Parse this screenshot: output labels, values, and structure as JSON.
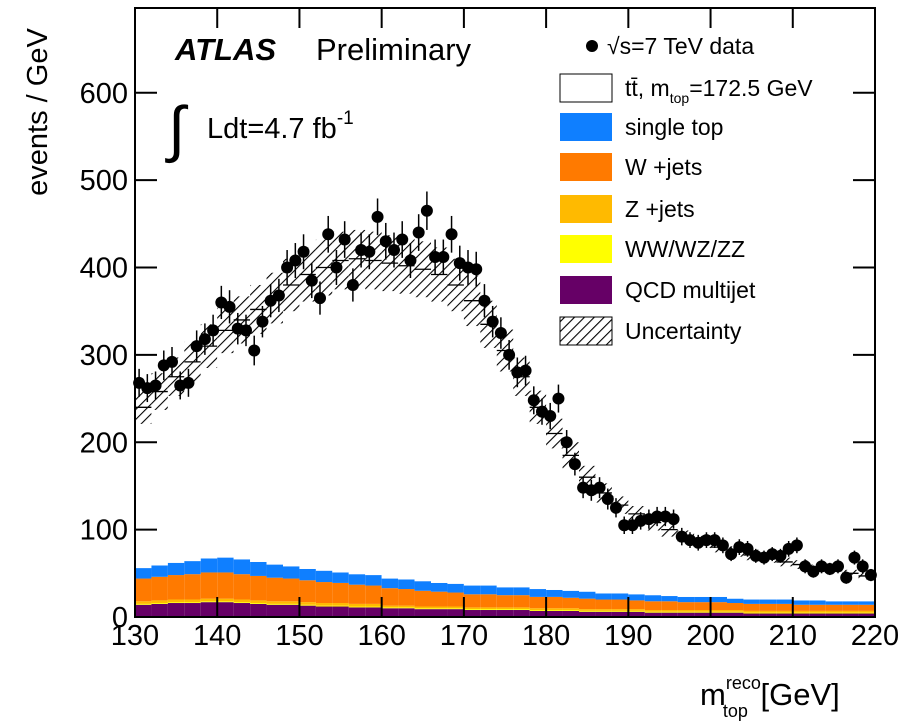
{
  "chart_data": {
    "type": "histogram",
    "experiment": "ATLAS",
    "status": "Preliminary",
    "luminosity": [
      "∫",
      "Ldt=4.7 fb",
      "-1"
    ],
    "y_label": "events / GeV",
    "x_label": [
      "m",
      "reco",
      "top",
      " [GeV]"
    ],
    "xlim": [
      130,
      220
    ],
    "ylim": [
      0,
      697
    ],
    "xticks": [
      130,
      140,
      150,
      160,
      170,
      180,
      190,
      200,
      210,
      220
    ],
    "yticks": [
      0,
      100,
      200,
      300,
      400,
      500,
      600
    ],
    "bins": [
      130,
      132,
      134,
      136,
      138,
      140,
      142,
      144,
      146,
      148,
      150,
      152,
      154,
      156,
      158,
      160,
      162,
      164,
      166,
      168,
      170,
      172,
      174,
      176,
      178,
      180,
      182,
      184,
      186,
      188,
      190,
      192,
      194,
      196,
      198,
      200,
      202,
      204,
      206,
      208,
      210,
      212,
      214,
      216,
      218,
      220
    ],
    "series": [
      {
        "name": [
          "tt̄, m",
          "top",
          "=172.5 GeV"
        ],
        "color": "#ffffff",
        "values": [
          184,
          199,
          213,
          228,
          243,
          260,
          274,
          289,
          305,
          322,
          337,
          347,
          357,
          361,
          360,
          361,
          359,
          357,
          353,
          342,
          326,
          299,
          271,
          241,
          208,
          179,
          155,
          131,
          115,
          101,
          92,
          83,
          76,
          69,
          63,
          57,
          54,
          51,
          47,
          43,
          41,
          37,
          35,
          32,
          29
        ]
      },
      {
        "name": "single top",
        "color": "#0f7fff",
        "values": [
          12,
          13,
          14,
          15,
          16,
          17,
          17,
          16,
          15,
          14,
          13,
          13,
          12,
          12,
          12,
          11,
          11,
          11,
          10,
          10,
          10,
          10,
          9,
          9,
          9,
          8,
          8,
          8,
          7,
          7,
          7,
          7,
          6,
          6,
          6,
          6,
          5,
          5,
          5,
          5,
          5,
          5,
          4,
          4,
          4
        ]
      },
      {
        "name": "W +jets",
        "color": "#ff7a00",
        "values": [
          26,
          27,
          28,
          29,
          30,
          30,
          29,
          28,
          27,
          26,
          25,
          24,
          23,
          22,
          21,
          20,
          19,
          18,
          17,
          16,
          15,
          15,
          14,
          14,
          13,
          13,
          12,
          12,
          11,
          11,
          10,
          10,
          10,
          9,
          9,
          9,
          8,
          8,
          8,
          8,
          7,
          7,
          7,
          7,
          7
        ]
      },
      {
        "name": "Z +jets",
        "color": "#ffba00",
        "values": [
          3,
          3,
          3,
          3,
          3,
          3,
          3,
          3,
          3,
          3,
          3,
          3,
          3,
          3,
          3,
          2,
          2,
          2,
          2,
          2,
          2,
          2,
          2,
          2,
          2,
          2,
          2,
          2,
          2,
          2,
          2,
          2,
          2,
          2,
          2,
          2,
          2,
          2,
          2,
          2,
          2,
          2,
          2,
          2,
          2
        ]
      },
      {
        "name": "WW/WZ/ZZ",
        "color": "#ffff00",
        "values": [
          1,
          1,
          1,
          1,
          1,
          1,
          1,
          1,
          1,
          1,
          1,
          1,
          1,
          1,
          1,
          1,
          1,
          1,
          1,
          1,
          1,
          1,
          1,
          1,
          1,
          1,
          1,
          1,
          1,
          1,
          1,
          1,
          1,
          1,
          1,
          1,
          1,
          1,
          1,
          1,
          1,
          1,
          1,
          1,
          1
        ]
      },
      {
        "name": "QCD multijet",
        "color": "#660066",
        "values": [
          14,
          15,
          16,
          16,
          17,
          17,
          16,
          15,
          14,
          14,
          13,
          12,
          12,
          11,
          11,
          10,
          10,
          9,
          9,
          9,
          8,
          8,
          8,
          8,
          7,
          7,
          7,
          6,
          6,
          6,
          6,
          5,
          5,
          5,
          5,
          5,
          5,
          4,
          4,
          4,
          4,
          4,
          4,
          4,
          4
        ]
      }
    ],
    "uncertainty_name": "Uncertainty",
    "uncertainty": [
      19,
      21,
      22,
      23,
      25,
      26,
      27,
      28,
      29,
      30,
      31,
      32,
      33,
      33,
      33,
      32,
      32,
      32,
      31,
      30,
      29,
      27,
      24,
      22,
      19,
      17,
      15,
      13,
      11,
      10,
      9,
      9,
      8,
      7,
      7,
      6,
      6,
      6,
      5,
      5,
      5,
      4,
      4,
      4,
      4
    ],
    "data_series": {
      "name": "√s=7 TeV data",
      "color": "#000000",
      "x": [
        130.5,
        131.5,
        132.5,
        133.5,
        134.5,
        135.5,
        136.5,
        137.5,
        138.5,
        139.5,
        140.5,
        141.5,
        142.5,
        143.5,
        144.5,
        145.5,
        146.5,
        147.5,
        148.5,
        149.5,
        150.5,
        151.5,
        152.5,
        153.5,
        154.5,
        155.5,
        156.5,
        157.5,
        158.5,
        159.5,
        160.5,
        161.5,
        162.5,
        163.5,
        164.5,
        165.5,
        166.5,
        167.5,
        168.5,
        169.5,
        170.5,
        171.5,
        172.5,
        173.5,
        174.5,
        175.5,
        176.5,
        177.5,
        178.5,
        179.5,
        180.5,
        181.5,
        182.5,
        183.5,
        184.5,
        185.5,
        186.5,
        187.5,
        188.5,
        189.5,
        190.5,
        191.5,
        192.5,
        193.5,
        194.5,
        195.5,
        196.5,
        197.5,
        198.5,
        199.5,
        200.5,
        201.5,
        202.5,
        203.5,
        204.5,
        205.5,
        206.5,
        207.5,
        208.5,
        209.5,
        210.5,
        211.5,
        212.5,
        213.5,
        214.5,
        215.5,
        216.5,
        217.5,
        218.5,
        219.5
      ],
      "values": [
        268,
        262,
        265,
        288,
        292,
        265,
        268,
        310,
        318,
        328,
        360,
        355,
        330,
        328,
        305,
        338,
        362,
        368,
        400,
        408,
        418,
        385,
        365,
        438,
        400,
        432,
        380,
        420,
        418,
        458,
        430,
        420,
        432,
        408,
        440,
        465,
        412,
        412,
        438,
        405,
        400,
        398,
        362,
        338,
        325,
        300,
        280,
        282,
        248,
        235,
        230,
        250,
        200,
        175,
        148,
        145,
        148,
        135,
        125,
        105,
        105,
        110,
        112,
        115,
        115,
        112,
        92,
        88,
        85,
        88,
        88,
        82,
        72,
        80,
        78,
        70,
        68,
        72,
        70,
        78,
        82,
        58,
        52,
        58,
        55,
        58,
        45,
        68,
        58,
        48
      ],
      "errors": [
        16,
        16,
        16,
        17,
        17,
        16,
        16,
        18,
        18,
        18,
        19,
        19,
        18,
        18,
        17,
        18,
        19,
        19,
        20,
        20,
        20,
        20,
        19,
        21,
        20,
        21,
        19,
        20,
        20,
        21,
        21,
        20,
        21,
        20,
        21,
        22,
        20,
        20,
        21,
        20,
        20,
        20,
        19,
        18,
        18,
        17,
        17,
        17,
        16,
        15,
        15,
        16,
        14,
        13,
        12,
        12,
        12,
        12,
        11,
        10,
        10,
        10,
        11,
        11,
        11,
        11,
        10,
        9,
        9,
        9,
        9,
        9,
        8,
        9,
        9,
        8,
        8,
        8,
        8,
        9,
        9,
        8,
        7,
        8,
        7,
        8,
        7,
        8,
        8,
        7
      ]
    }
  }
}
